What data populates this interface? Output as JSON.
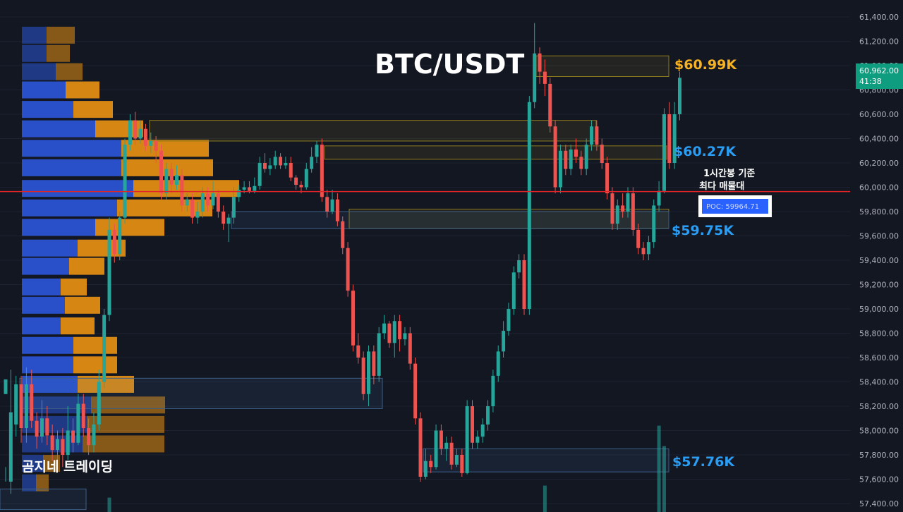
{
  "chart_data": {
    "type": "candlestick",
    "title": "BTC/USDT",
    "brand_label": "곰지네 트레이딩",
    "y_axis": {
      "ticks": [
        61400,
        61200,
        61000,
        60800,
        60600,
        60400,
        60200,
        60000,
        59800,
        59600,
        59400,
        59200,
        59000,
        58800,
        58600,
        58400,
        58200,
        58000,
        57800,
        57600,
        57400
      ],
      "tick_labels": [
        "61,400.00",
        "61,200.00",
        "61,000.00",
        "60,800.00",
        "60,600.00",
        "60,400.00",
        "60,200.00",
        "60,000.00",
        "59,800.00",
        "59,600.00",
        "59,400.00",
        "59,200.00",
        "59,000.00",
        "58,800.00",
        "58,600.00",
        "58,400.00",
        "58,200.00",
        "58,000.00",
        "57,800.00",
        "57,600.00",
        "57,400.00"
      ],
      "ylim": [
        57350,
        61550
      ]
    },
    "current_price": {
      "value": 60962,
      "label": "60,962.00",
      "countdown": "41:38"
    },
    "poc": {
      "value": 59964.71,
      "label": "POC: 59964.71",
      "annotation_line1": "1시간봉 기준",
      "annotation_line2": "최다 매물대"
    },
    "levels": [
      {
        "label": "$60.99K",
        "value": 60990,
        "color": "#f5b324"
      },
      {
        "label": "$60.27K",
        "value": 60270,
        "color": "#2a9df4"
      },
      {
        "label": "$59.75K",
        "value": 59750,
        "color": "#2a9df4"
      },
      {
        "label": "$57.76K",
        "value": 57760,
        "color": "#2a9df4"
      }
    ],
    "zones": [
      {
        "kind": "supply",
        "from": 60550,
        "to": 60380
      },
      {
        "kind": "supply",
        "from": 60340,
        "to": 60230
      },
      {
        "kind": "supply",
        "from": 59820,
        "to": 59660
      },
      {
        "kind": "supply",
        "from": 61080,
        "to": 60910
      },
      {
        "kind": "demand",
        "from": 59800,
        "to": 59660
      },
      {
        "kind": "demand",
        "from": 58430,
        "to": 58180
      },
      {
        "kind": "demand",
        "from": 57850,
        "to": 57660
      },
      {
        "kind": "demand",
        "from": 57520,
        "to": 57350
      }
    ],
    "volume_profile": [
      {
        "price": 61250,
        "buy": 35,
        "sell": 40
      },
      {
        "price": 61100,
        "buy": 35,
        "sell": 33
      },
      {
        "price": 60950,
        "buy": 48,
        "sell": 38
      },
      {
        "price": 60800,
        "buy": 62,
        "sell": 48
      },
      {
        "price": 60640,
        "buy": 73,
        "sell": 56
      },
      {
        "price": 60480,
        "buy": 104,
        "sell": 68
      },
      {
        "price": 60320,
        "buy": 141,
        "sell": 124
      },
      {
        "price": 60160,
        "buy": 141,
        "sell": 130
      },
      {
        "price": 59990,
        "buy": 158,
        "sell": 150
      },
      {
        "price": 59830,
        "buy": 135,
        "sell": 135
      },
      {
        "price": 59670,
        "buy": 104,
        "sell": 98
      },
      {
        "price": 59500,
        "buy": 79,
        "sell": 68
      },
      {
        "price": 59350,
        "buy": 67,
        "sell": 50
      },
      {
        "price": 59180,
        "buy": 55,
        "sell": 37
      },
      {
        "price": 59030,
        "buy": 61,
        "sell": 50
      },
      {
        "price": 58860,
        "buy": 55,
        "sell": 48
      },
      {
        "price": 58700,
        "buy": 73,
        "sell": 62
      },
      {
        "price": 58540,
        "buy": 73,
        "sell": 62
      },
      {
        "price": 58380,
        "buy": 79,
        "sell": 80
      },
      {
        "price": 58210,
        "buy": 98,
        "sell": 105
      },
      {
        "price": 58050,
        "buy": 92,
        "sell": 110
      },
      {
        "price": 57890,
        "buy": 86,
        "sell": 116
      },
      {
        "price": 57730,
        "buy": 30,
        "sell": 24
      },
      {
        "price": 57570,
        "buy": 20,
        "sell": 18
      }
    ],
    "candles": [
      [
        58300,
        58420,
        57700,
        57580
      ],
      [
        57580,
        58150,
        58500,
        57480
      ],
      [
        58050,
        58380,
        58450,
        57950
      ],
      [
        58380,
        58020,
        58450,
        57900
      ],
      [
        58020,
        58380,
        58520,
        57900
      ],
      [
        58380,
        58080,
        58500,
        58020
      ],
      [
        58080,
        57950,
        58150,
        57850
      ],
      [
        57950,
        58100,
        58250,
        57900
      ],
      [
        58100,
        57960,
        58200,
        57880
      ],
      [
        57960,
        57840,
        58050,
        57750
      ],
      [
        57840,
        57930,
        58000,
        57720
      ],
      [
        57930,
        57800,
        58020,
        57700
      ],
      [
        57800,
        58000,
        58200,
        57760
      ],
      [
        58000,
        57900,
        58100,
        57820
      ],
      [
        57900,
        58220,
        58300,
        57880
      ],
      [
        58220,
        58020,
        58300,
        57950
      ],
      [
        58020,
        57880,
        58100,
        57800
      ],
      [
        57880,
        58050,
        58150,
        57820
      ],
      [
        58050,
        58400,
        58500,
        58000
      ],
      [
        58400,
        58950,
        59000,
        58350
      ],
      [
        58950,
        59650,
        59750,
        58900
      ],
      [
        59650,
        59450,
        59700,
        59380
      ],
      [
        59450,
        59750,
        59800,
        59400
      ],
      [
        59750,
        60350,
        60400,
        59700
      ],
      [
        60350,
        60550,
        60600,
        60300
      ],
      [
        60550,
        60400,
        60620,
        60350
      ],
      [
        60400,
        60480,
        60550,
        60360
      ],
      [
        60480,
        60340,
        60520,
        60300
      ],
      [
        60340,
        60380,
        60450,
        60280
      ],
      [
        60380,
        60300,
        60420,
        60200
      ],
      [
        60300,
        59950,
        60350,
        59900
      ],
      [
        59950,
        60150,
        60200,
        59900
      ],
      [
        60150,
        60020,
        60200,
        59950
      ],
      [
        60020,
        60100,
        60180,
        59980
      ],
      [
        60100,
        59850,
        60150,
        59800
      ],
      [
        59850,
        59900,
        59950,
        59800
      ],
      [
        59900,
        59750,
        59950,
        59700
      ],
      [
        59750,
        59800,
        59880,
        59700
      ],
      [
        59800,
        59950,
        60000,
        59750
      ],
      [
        59950,
        59850,
        60000,
        59800
      ],
      [
        59850,
        59950,
        60050,
        59820
      ],
      [
        59950,
        59800,
        59980,
        59750
      ],
      [
        59800,
        59700,
        59850,
        59650
      ],
      [
        59700,
        59750,
        59780,
        59550
      ],
      [
        59750,
        59920,
        60000,
        59700
      ],
      [
        59920,
        59980,
        60020,
        59880
      ],
      [
        59980,
        60000,
        60050,
        59950
      ],
      [
        60000,
        59970,
        60050,
        59950
      ],
      [
        59970,
        60010,
        60080,
        59950
      ],
      [
        60010,
        60200,
        60250,
        59980
      ],
      [
        60200,
        60150,
        60280,
        60120
      ],
      [
        60150,
        60180,
        60240,
        60100
      ],
      [
        60180,
        60250,
        60300,
        60150
      ],
      [
        60250,
        60180,
        60280,
        60150
      ],
      [
        60180,
        60200,
        60250,
        60150
      ],
      [
        60200,
        60080,
        60250,
        60050
      ],
      [
        60080,
        60020,
        60100,
        59980
      ],
      [
        60020,
        60000,
        60050,
        59950
      ],
      [
        60000,
        60150,
        60200,
        59980
      ],
      [
        60150,
        60250,
        60330,
        60120
      ],
      [
        60250,
        60350,
        60380,
        60200
      ],
      [
        60350,
        59920,
        60400,
        59880
      ],
      [
        59920,
        59800,
        59980,
        59750
      ],
      [
        59800,
        59900,
        59980,
        59780
      ],
      [
        59900,
        59720,
        59950,
        59680
      ],
      [
        59720,
        59500,
        59760,
        59450
      ],
      [
        59500,
        59150,
        59550,
        59100
      ],
      [
        59150,
        58700,
        59200,
        58650
      ],
      [
        58700,
        58600,
        58800,
        58550
      ],
      [
        58600,
        58300,
        58650,
        58250
      ],
      [
        58300,
        58650,
        58700,
        58200
      ],
      [
        58650,
        58450,
        58700,
        58380
      ],
      [
        58450,
        58800,
        58850,
        58400
      ],
      [
        58800,
        58880,
        58950,
        58750
      ],
      [
        58880,
        58720,
        58900,
        58680
      ],
      [
        58720,
        58900,
        58950,
        58600
      ],
      [
        58900,
        58750,
        58950,
        58650
      ],
      [
        58750,
        58800,
        58850,
        58700
      ],
      [
        58800,
        58550,
        58850,
        58500
      ],
      [
        58550,
        58100,
        58600,
        58050
      ],
      [
        58100,
        57620,
        58150,
        57580
      ],
      [
        57620,
        57750,
        57850,
        57600
      ],
      [
        57750,
        57700,
        57800,
        57650
      ],
      [
        57700,
        58000,
        58050,
        57680
      ],
      [
        58000,
        57850,
        58050,
        57800
      ],
      [
        57850,
        57900,
        57950,
        57750
      ],
      [
        57900,
        57720,
        57950,
        57680
      ],
      [
        57720,
        57800,
        57850,
        57700
      ],
      [
        57800,
        57650,
        57850,
        57620
      ],
      [
        57650,
        58200,
        58250,
        57640
      ],
      [
        58200,
        57900,
        58250,
        57850
      ],
      [
        57900,
        57950,
        58000,
        57850
      ],
      [
        57950,
        58050,
        58100,
        57900
      ],
      [
        58050,
        58200,
        58250,
        58000
      ],
      [
        58200,
        58450,
        58500,
        58150
      ],
      [
        58450,
        58650,
        58700,
        58400
      ],
      [
        58650,
        58820,
        58900,
        58600
      ],
      [
        58820,
        59000,
        59050,
        58780
      ],
      [
        59000,
        59300,
        59350,
        58950
      ],
      [
        59300,
        59400,
        59450,
        59250
      ],
      [
        59400,
        59000,
        59450,
        58950
      ],
      [
        59000,
        60700,
        60750,
        58950
      ],
      [
        60700,
        61100,
        61350,
        60650
      ],
      [
        61100,
        60950,
        61150,
        60850
      ],
      [
        60950,
        60850,
        61050,
        60750
      ],
      [
        60850,
        60500,
        60900,
        60450
      ],
      [
        60500,
        60000,
        60550,
        59950
      ],
      [
        60000,
        60300,
        60350,
        59950
      ],
      [
        60300,
        60150,
        60350,
        60100
      ],
      [
        60150,
        60310,
        60350,
        60100
      ],
      [
        60310,
        60250,
        60400,
        60200
      ],
      [
        60250,
        60150,
        60300,
        60100
      ],
      [
        60150,
        60350,
        60400,
        60100
      ],
      [
        60350,
        60500,
        60550,
        60300
      ],
      [
        60500,
        60350,
        60550,
        60300
      ],
      [
        60350,
        60200,
        60400,
        60150
      ],
      [
        60200,
        59950,
        60250,
        59900
      ],
      [
        59950,
        59700,
        60000,
        59650
      ],
      [
        59700,
        59850,
        59900,
        59650
      ],
      [
        59850,
        59800,
        59950,
        59750
      ],
      [
        59800,
        59950,
        60000,
        59750
      ],
      [
        59950,
        59650,
        60000,
        59600
      ],
      [
        59650,
        59500,
        59700,
        59450
      ],
      [
        59500,
        59450,
        59550,
        59400
      ],
      [
        59450,
        59550,
        59600,
        59400
      ],
      [
        59550,
        59850,
        59900,
        59500
      ],
      [
        59850,
        59970,
        60050,
        59800
      ],
      [
        59970,
        60600,
        60650,
        59950
      ],
      [
        60600,
        60200,
        60700,
        60150
      ],
      [
        60200,
        60600,
        60700,
        60150
      ],
      [
        60600,
        60900,
        60950,
        60550
      ]
    ],
    "volume_bars": [
      {
        "index": 104,
        "value": 0.22
      },
      {
        "index": 126,
        "value": 0.72
      },
      {
        "index": 127,
        "value": 0.55
      },
      {
        "index": 20,
        "value": 0.12
      }
    ]
  }
}
